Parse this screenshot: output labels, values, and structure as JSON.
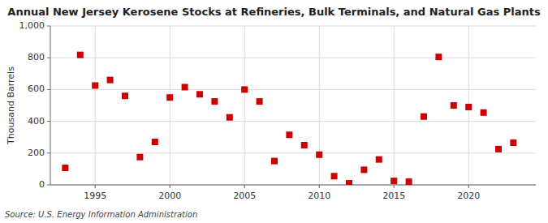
{
  "chart_data": {
    "type": "scatter",
    "title": "Annual New Jersey Kerosene Stocks at Refineries, Bulk Terminals, and Natural Gas Plants",
    "y_label": "Thousand Barrels",
    "annotations": [
      "Source: U.S. Energy Information Administration"
    ],
    "x": [
      1993,
      1994,
      1995,
      1996,
      1997,
      1998,
      1999,
      2000,
      2001,
      2002,
      2003,
      2004,
      2005,
      2006,
      2007,
      2008,
      2009,
      2010,
      2011,
      2012,
      2013,
      2014,
      2015,
      2016,
      2017,
      2018,
      2019,
      2020,
      2021,
      2022,
      2023
    ],
    "values": [
      107,
      818,
      625,
      660,
      560,
      175,
      270,
      550,
      615,
      570,
      525,
      425,
      600,
      525,
      150,
      315,
      250,
      190,
      55,
      10,
      95,
      160,
      25,
      20,
      430,
      805,
      500,
      490,
      455,
      225,
      265
    ],
    "color": "#cc0000",
    "marker": "square",
    "xlim": [
      1992,
      2024.5
    ],
    "ylim": [
      0,
      1000
    ],
    "xticks": [
      1995,
      2000,
      2005,
      2010,
      2015,
      2020
    ],
    "yticks": [
      0,
      200,
      400,
      600,
      800,
      {
        "value": 1000,
        "label": "1,000"
      }
    ],
    "grid": true
  }
}
